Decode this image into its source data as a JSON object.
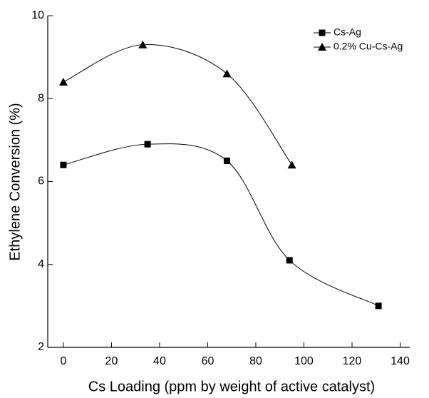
{
  "chart_data": {
    "type": "scatter",
    "x_label": "Cs Loading (ppm by weight of active catalyst)",
    "y_label": "Ethylene Conversion (%)",
    "xlim": [
      -6.5,
      144
    ],
    "xticks": [
      0,
      20,
      40,
      60,
      80,
      100,
      120,
      140
    ],
    "ylim": [
      2,
      10
    ],
    "yticks": [
      2,
      4,
      6,
      8,
      10
    ],
    "grid": false,
    "legend": "upper right",
    "smooth_curve": true,
    "series": [
      {
        "name": "Cs-Ag",
        "color": "#000000",
        "marker": "square",
        "x": [
          0,
          35,
          68,
          94,
          131
        ],
        "values": [
          6.4,
          6.9,
          6.5,
          4.1,
          3.0
        ]
      },
      {
        "name": "0.2% Cu-Cs-Ag",
        "color": "#000000",
        "marker": "triangle",
        "x": [
          0,
          33,
          68,
          95
        ],
        "values": [
          8.4,
          9.3,
          8.6,
          6.4
        ]
      }
    ]
  }
}
